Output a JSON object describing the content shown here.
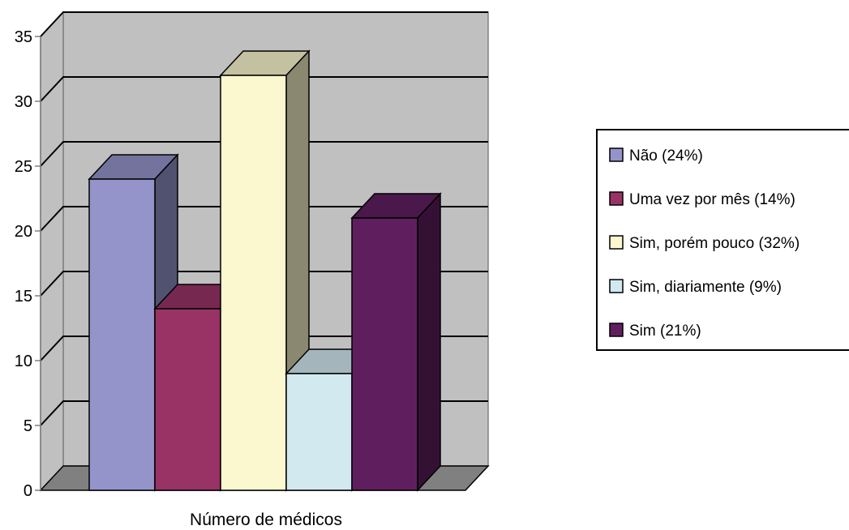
{
  "chart_data": {
    "type": "bar",
    "title": "",
    "xlabel": "Número de médicos",
    "ylabel": "",
    "ylim": [
      0,
      35
    ],
    "yticks": [
      "0",
      "5",
      "10",
      "15",
      "20",
      "25",
      "30",
      "35"
    ],
    "grid": true,
    "legend_position": "right",
    "series": [
      {
        "name": "Não (24%)",
        "values": [
          24
        ],
        "color": "#9494CB"
      },
      {
        "name": "Uma vez por mês (14%)",
        "values": [
          14
        ],
        "color": "#993366"
      },
      {
        "name": "Sim, porém pouco (32%)",
        "values": [
          32
        ],
        "color": "#FBF7CE"
      },
      {
        "name": "Sim, diariamente (9%)",
        "values": [
          9
        ],
        "color": "#D2E9F0"
      },
      {
        "name": "Sim (21%)",
        "values": [
          21
        ],
        "color": "#5F1F5F"
      }
    ],
    "colors": {
      "wall": "#C0C0C0",
      "floor": "#808080",
      "gridline": "#000000"
    }
  }
}
